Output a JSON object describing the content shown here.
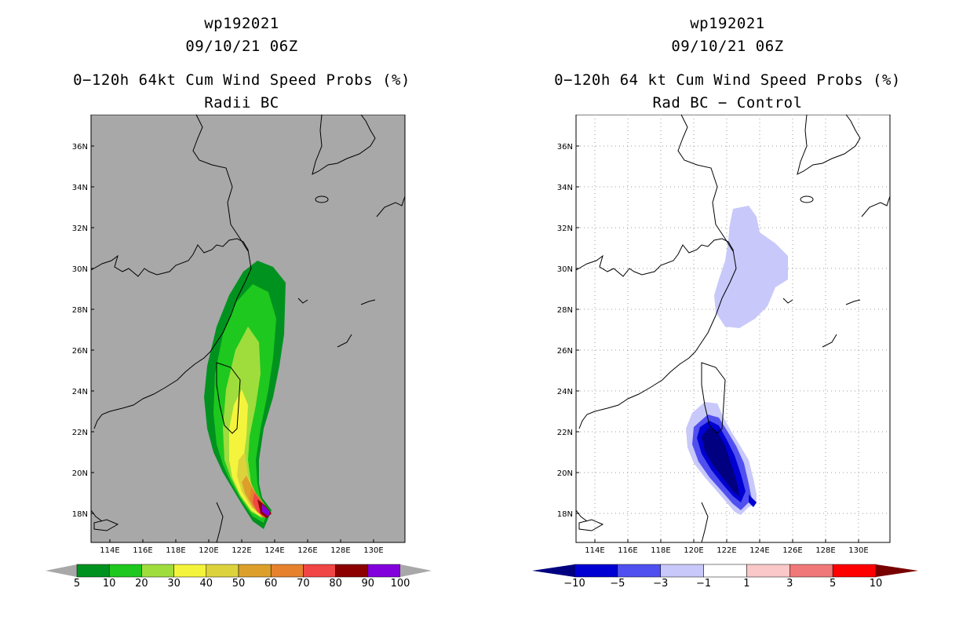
{
  "left": {
    "storm_id": "wp192021",
    "datetime": "09/10/21 06Z",
    "title": "0−120h 64kt Cum Wind Speed Probs (%)",
    "subtitle": "Radii BC",
    "lon_ticks": [
      "114E",
      "116E",
      "118E",
      "120E",
      "122E",
      "124E",
      "126E",
      "128E",
      "130E"
    ],
    "lat_ticks": [
      "36N",
      "34N",
      "32N",
      "30N",
      "28N",
      "26N",
      "24N",
      "22N",
      "20N",
      "18N"
    ],
    "colorbar": {
      "labels": [
        "5",
        "10",
        "20",
        "30",
        "40",
        "50",
        "60",
        "70",
        "80",
        "90",
        "100"
      ],
      "colors": [
        "#00921f",
        "#1ec81e",
        "#9fdd3c",
        "#f4f43c",
        "#dcd23c",
        "#dca02a",
        "#e6822d",
        "#f04646",
        "#8c0000",
        "#8200dc"
      ],
      "end_color": "#a8a8a8"
    },
    "background": "#a8a8a8"
  },
  "right": {
    "storm_id": "wp192021",
    "datetime": "09/10/21 06Z",
    "title": "0−120h 64 kt Cum Wind Speed Probs (%)",
    "subtitle": "Rad BC − Control",
    "lon_ticks": [
      "114E",
      "116E",
      "118E",
      "120E",
      "122E",
      "124E",
      "126E",
      "128E",
      "130E"
    ],
    "lat_ticks": [
      "36N",
      "34N",
      "32N",
      "30N",
      "28N",
      "26N",
      "24N",
      "22N",
      "20N",
      "18N"
    ],
    "colorbar": {
      "labels": [
        "−10",
        "−5",
        "−3",
        "−1",
        "1",
        "3",
        "5",
        "10"
      ],
      "colors": [
        "#0000d2",
        "#5050f0",
        "#c8c8fa",
        "#ffffff",
        "#fac8c8",
        "#f07878",
        "#ff0000"
      ],
      "low_end_color": "#000080",
      "high_end_color": "#780000"
    },
    "background": "#ffffff"
  }
}
